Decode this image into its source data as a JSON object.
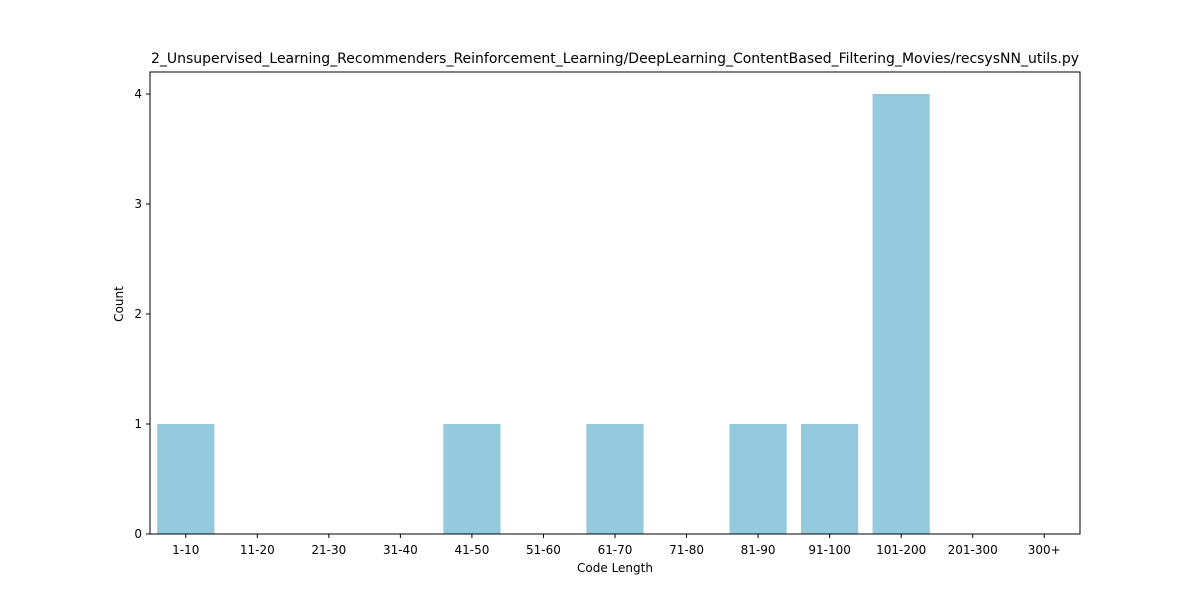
{
  "chart_data": {
    "type": "bar",
    "title": "2_Unsupervised_Learning_Recommenders_Reinforcement_Learning/DeepLearning_ContentBased_Filtering_Movies/recsysNN_utils.py",
    "xlabel": "Code Length",
    "ylabel": "Count",
    "categories": [
      "1-10",
      "11-20",
      "21-30",
      "31-40",
      "41-50",
      "51-60",
      "61-70",
      "71-80",
      "81-90",
      "91-100",
      "101-200",
      "201-300",
      "300+"
    ],
    "values": [
      1,
      0,
      0,
      0,
      1,
      0,
      1,
      0,
      1,
      1,
      4,
      0,
      0
    ],
    "yticks": [
      "0",
      "1",
      "2",
      "3",
      "4"
    ],
    "ylim": [
      0,
      4.2
    ],
    "bar_color": "#95cade",
    "grid": false,
    "legend": "none"
  }
}
